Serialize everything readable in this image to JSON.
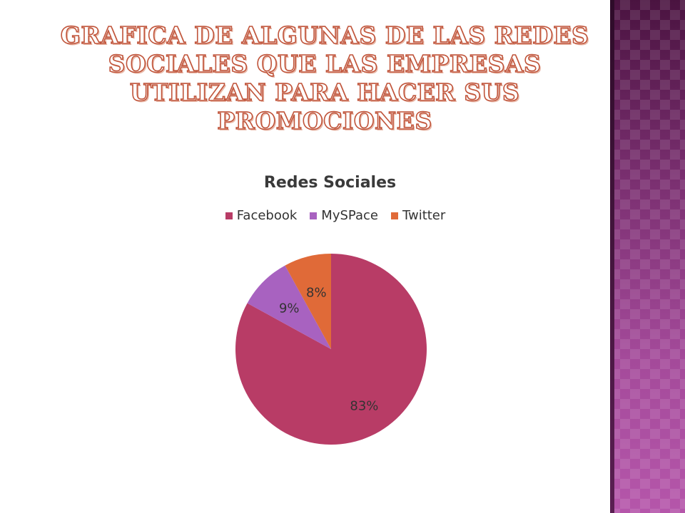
{
  "slide": {
    "title": "GRAFICA DE ALGUNAS DE LAS REDES SOCIALES QUE LAS EMPRESAS UTILIZAN PARA HACER SUS PROMOCIONES"
  },
  "chart_data": {
    "type": "pie",
    "title": "Redes Sociales",
    "categories": [
      "Facebook",
      "MySPace",
      "Twitter"
    ],
    "values": [
      83,
      9,
      8
    ],
    "labels": [
      "83%",
      "9%",
      "8%"
    ],
    "colors": [
      "#b83c66",
      "#a862c0",
      "#e06a38"
    ],
    "legend_position": "top"
  }
}
